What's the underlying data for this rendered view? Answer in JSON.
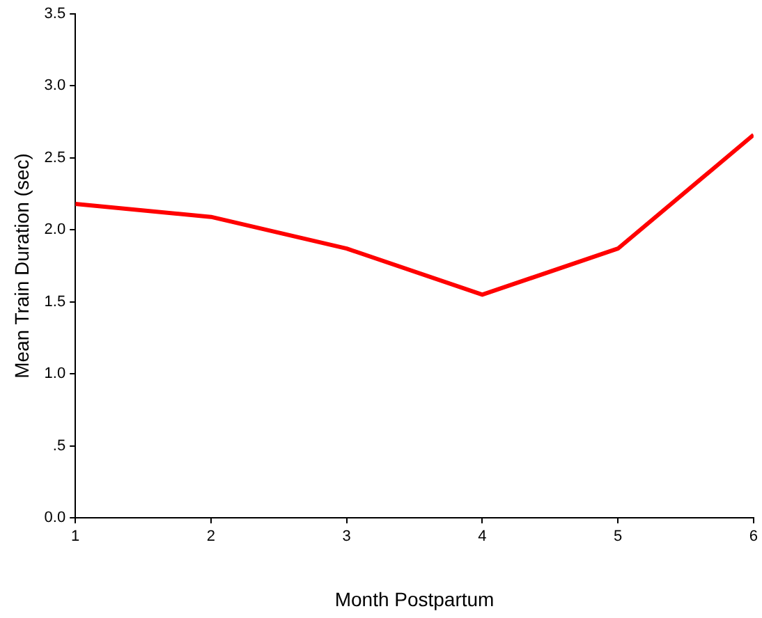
{
  "chart_data": {
    "type": "line",
    "xlabel": "Month Postpartum",
    "ylabel": "Mean Train Duration (sec)",
    "x": [
      1,
      2,
      3,
      4,
      5,
      6
    ],
    "series": [
      {
        "color": "#ff0000",
        "values": [
          2.18,
          2.09,
          1.87,
          1.55,
          1.87,
          2.66
        ]
      }
    ],
    "xlim": [
      1,
      6
    ],
    "xticks": [
      1,
      2,
      3,
      4,
      5,
      6
    ],
    "ylim": [
      0,
      3.5
    ],
    "yticks": [
      {
        "value": 0,
        "label": "0.0"
      },
      {
        "value": 0.5,
        "label": ".5"
      },
      {
        "value": 1,
        "label": "1.0"
      },
      {
        "value": 1.5,
        "label": "1.5"
      },
      {
        "value": 2,
        "label": "2.0"
      },
      {
        "value": 2.5,
        "label": "2.5"
      },
      {
        "value": 3,
        "label": "3.0"
      },
      3.5
    ],
    "grid": false,
    "legend": false,
    "marker": "none",
    "line_style": "solid"
  }
}
